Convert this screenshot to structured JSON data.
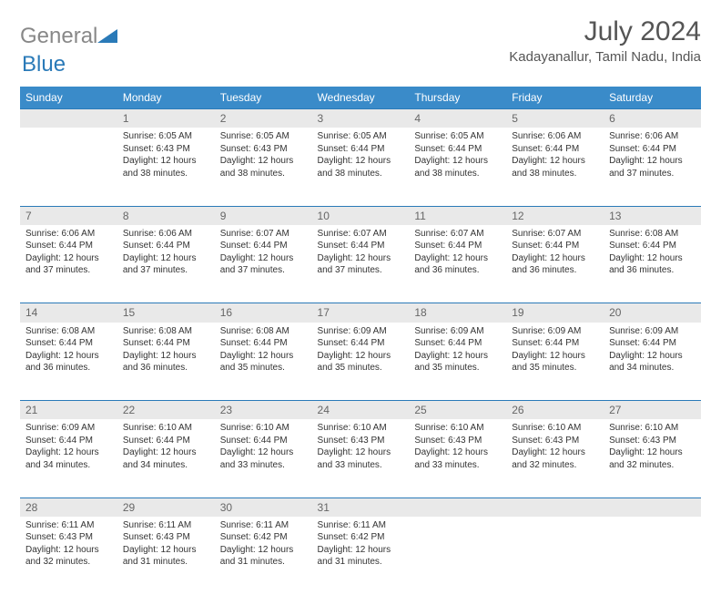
{
  "logo": {
    "word1": "General",
    "word2": "Blue"
  },
  "header": {
    "title": "July 2024",
    "location": "Kadayanallur, Tamil Nadu, India"
  },
  "colors": {
    "header_bg": "#3a8bc9",
    "daynum_bg": "#e9e9e9",
    "rule": "#2a7ab8",
    "logo_gray": "#888888",
    "logo_blue": "#2a7ab8"
  },
  "weekdays": [
    "Sunday",
    "Monday",
    "Tuesday",
    "Wednesday",
    "Thursday",
    "Friday",
    "Saturday"
  ],
  "weeks": [
    [
      null,
      {
        "n": "1",
        "sr": "Sunrise: 6:05 AM",
        "ss": "Sunset: 6:43 PM",
        "dl": "Daylight: 12 hours and 38 minutes."
      },
      {
        "n": "2",
        "sr": "Sunrise: 6:05 AM",
        "ss": "Sunset: 6:43 PM",
        "dl": "Daylight: 12 hours and 38 minutes."
      },
      {
        "n": "3",
        "sr": "Sunrise: 6:05 AM",
        "ss": "Sunset: 6:44 PM",
        "dl": "Daylight: 12 hours and 38 minutes."
      },
      {
        "n": "4",
        "sr": "Sunrise: 6:05 AM",
        "ss": "Sunset: 6:44 PM",
        "dl": "Daylight: 12 hours and 38 minutes."
      },
      {
        "n": "5",
        "sr": "Sunrise: 6:06 AM",
        "ss": "Sunset: 6:44 PM",
        "dl": "Daylight: 12 hours and 38 minutes."
      },
      {
        "n": "6",
        "sr": "Sunrise: 6:06 AM",
        "ss": "Sunset: 6:44 PM",
        "dl": "Daylight: 12 hours and 37 minutes."
      }
    ],
    [
      {
        "n": "7",
        "sr": "Sunrise: 6:06 AM",
        "ss": "Sunset: 6:44 PM",
        "dl": "Daylight: 12 hours and 37 minutes."
      },
      {
        "n": "8",
        "sr": "Sunrise: 6:06 AM",
        "ss": "Sunset: 6:44 PM",
        "dl": "Daylight: 12 hours and 37 minutes."
      },
      {
        "n": "9",
        "sr": "Sunrise: 6:07 AM",
        "ss": "Sunset: 6:44 PM",
        "dl": "Daylight: 12 hours and 37 minutes."
      },
      {
        "n": "10",
        "sr": "Sunrise: 6:07 AM",
        "ss": "Sunset: 6:44 PM",
        "dl": "Daylight: 12 hours and 37 minutes."
      },
      {
        "n": "11",
        "sr": "Sunrise: 6:07 AM",
        "ss": "Sunset: 6:44 PM",
        "dl": "Daylight: 12 hours and 36 minutes."
      },
      {
        "n": "12",
        "sr": "Sunrise: 6:07 AM",
        "ss": "Sunset: 6:44 PM",
        "dl": "Daylight: 12 hours and 36 minutes."
      },
      {
        "n": "13",
        "sr": "Sunrise: 6:08 AM",
        "ss": "Sunset: 6:44 PM",
        "dl": "Daylight: 12 hours and 36 minutes."
      }
    ],
    [
      {
        "n": "14",
        "sr": "Sunrise: 6:08 AM",
        "ss": "Sunset: 6:44 PM",
        "dl": "Daylight: 12 hours and 36 minutes."
      },
      {
        "n": "15",
        "sr": "Sunrise: 6:08 AM",
        "ss": "Sunset: 6:44 PM",
        "dl": "Daylight: 12 hours and 36 minutes."
      },
      {
        "n": "16",
        "sr": "Sunrise: 6:08 AM",
        "ss": "Sunset: 6:44 PM",
        "dl": "Daylight: 12 hours and 35 minutes."
      },
      {
        "n": "17",
        "sr": "Sunrise: 6:09 AM",
        "ss": "Sunset: 6:44 PM",
        "dl": "Daylight: 12 hours and 35 minutes."
      },
      {
        "n": "18",
        "sr": "Sunrise: 6:09 AM",
        "ss": "Sunset: 6:44 PM",
        "dl": "Daylight: 12 hours and 35 minutes."
      },
      {
        "n": "19",
        "sr": "Sunrise: 6:09 AM",
        "ss": "Sunset: 6:44 PM",
        "dl": "Daylight: 12 hours and 35 minutes."
      },
      {
        "n": "20",
        "sr": "Sunrise: 6:09 AM",
        "ss": "Sunset: 6:44 PM",
        "dl": "Daylight: 12 hours and 34 minutes."
      }
    ],
    [
      {
        "n": "21",
        "sr": "Sunrise: 6:09 AM",
        "ss": "Sunset: 6:44 PM",
        "dl": "Daylight: 12 hours and 34 minutes."
      },
      {
        "n": "22",
        "sr": "Sunrise: 6:10 AM",
        "ss": "Sunset: 6:44 PM",
        "dl": "Daylight: 12 hours and 34 minutes."
      },
      {
        "n": "23",
        "sr": "Sunrise: 6:10 AM",
        "ss": "Sunset: 6:44 PM",
        "dl": "Daylight: 12 hours and 33 minutes."
      },
      {
        "n": "24",
        "sr": "Sunrise: 6:10 AM",
        "ss": "Sunset: 6:43 PM",
        "dl": "Daylight: 12 hours and 33 minutes."
      },
      {
        "n": "25",
        "sr": "Sunrise: 6:10 AM",
        "ss": "Sunset: 6:43 PM",
        "dl": "Daylight: 12 hours and 33 minutes."
      },
      {
        "n": "26",
        "sr": "Sunrise: 6:10 AM",
        "ss": "Sunset: 6:43 PM",
        "dl": "Daylight: 12 hours and 32 minutes."
      },
      {
        "n": "27",
        "sr": "Sunrise: 6:10 AM",
        "ss": "Sunset: 6:43 PM",
        "dl": "Daylight: 12 hours and 32 minutes."
      }
    ],
    [
      {
        "n": "28",
        "sr": "Sunrise: 6:11 AM",
        "ss": "Sunset: 6:43 PM",
        "dl": "Daylight: 12 hours and 32 minutes."
      },
      {
        "n": "29",
        "sr": "Sunrise: 6:11 AM",
        "ss": "Sunset: 6:43 PM",
        "dl": "Daylight: 12 hours and 31 minutes."
      },
      {
        "n": "30",
        "sr": "Sunrise: 6:11 AM",
        "ss": "Sunset: 6:42 PM",
        "dl": "Daylight: 12 hours and 31 minutes."
      },
      {
        "n": "31",
        "sr": "Sunrise: 6:11 AM",
        "ss": "Sunset: 6:42 PM",
        "dl": "Daylight: 12 hours and 31 minutes."
      },
      null,
      null,
      null
    ]
  ]
}
